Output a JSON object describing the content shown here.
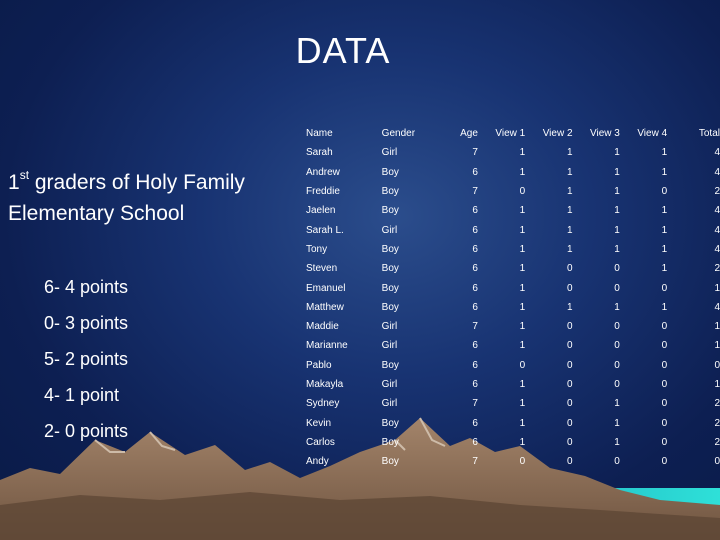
{
  "title": "DATA",
  "subtitle": {
    "ordinal_number": "1",
    "ordinal_suffix": "st",
    "line1_rest": " graders of Holy Family",
    "line2": "Elementary School"
  },
  "legend": [
    "6- 4 points",
    "0- 3 points",
    "5- 2 points",
    "4- 1 point",
    "2- 0 points"
  ],
  "table": {
    "headers": [
      "Name",
      "Gender",
      "Age",
      "View 1",
      "View 2",
      "View 3",
      "View 4",
      "Total"
    ],
    "rows": [
      [
        "Sarah",
        "Girl",
        "7",
        "1",
        "1",
        "1",
        "1",
        "4"
      ],
      [
        "Andrew",
        "Boy",
        "6",
        "1",
        "1",
        "1",
        "1",
        "4"
      ],
      [
        "Freddie",
        "Boy",
        "7",
        "0",
        "1",
        "1",
        "0",
        "2"
      ],
      [
        "Jaelen",
        "Boy",
        "6",
        "1",
        "1",
        "1",
        "1",
        "4"
      ],
      [
        "Sarah L.",
        "Girl",
        "6",
        "1",
        "1",
        "1",
        "1",
        "4"
      ],
      [
        "Tony",
        "Boy",
        "6",
        "1",
        "1",
        "1",
        "1",
        "4"
      ],
      [
        "Steven",
        "Boy",
        "6",
        "1",
        "0",
        "0",
        "1",
        "2"
      ],
      [
        "Emanuel",
        "Boy",
        "6",
        "1",
        "0",
        "0",
        "0",
        "1"
      ],
      [
        "Matthew",
        "Boy",
        "6",
        "1",
        "1",
        "1",
        "1",
        "4"
      ],
      [
        "Maddie",
        "Girl",
        "7",
        "1",
        "0",
        "0",
        "0",
        "1"
      ],
      [
        "Marianne",
        "Girl",
        "6",
        "1",
        "0",
        "0",
        "0",
        "1"
      ],
      [
        "Pablo",
        "Boy",
        "6",
        "0",
        "0",
        "0",
        "0",
        "0"
      ],
      [
        "Makayla",
        "Girl",
        "6",
        "1",
        "0",
        "0",
        "0",
        "1"
      ],
      [
        "Sydney",
        "Girl",
        "7",
        "1",
        "0",
        "1",
        "0",
        "2"
      ],
      [
        "Kevin",
        "Boy",
        "6",
        "1",
        "0",
        "1",
        "0",
        "2"
      ],
      [
        "Carlos",
        "Boy",
        "6",
        "1",
        "0",
        "1",
        "0",
        "2"
      ],
      [
        "Andy",
        "Boy",
        "7",
        "0",
        "0",
        "0",
        "0",
        "0"
      ]
    ]
  },
  "colors": {
    "background_center": "#2b4d8c",
    "background_edge": "#091a46",
    "mountain": "#8a6b52",
    "water": "#1fc8c8",
    "text": "#ffffff"
  }
}
